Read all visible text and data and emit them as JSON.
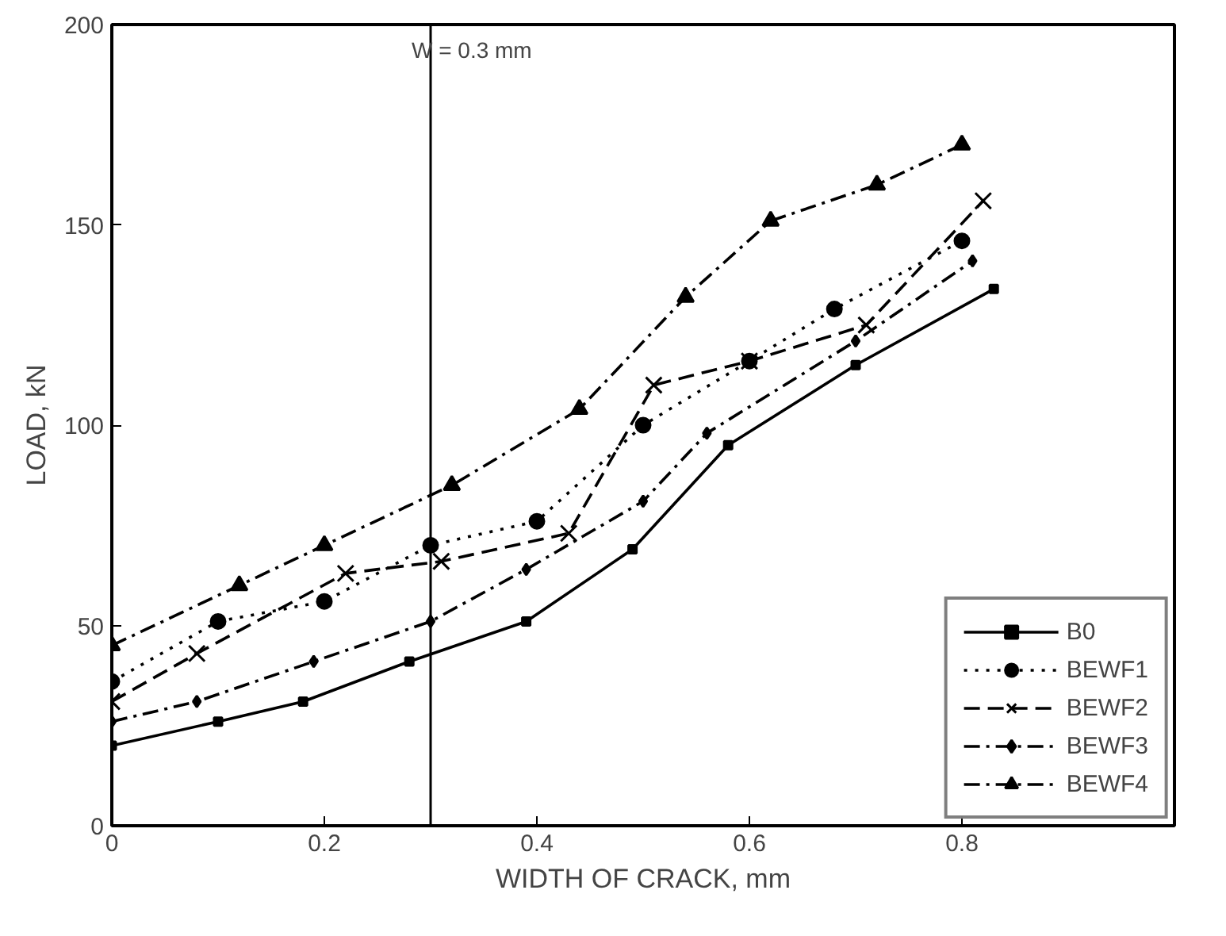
{
  "chart_data": {
    "type": "line",
    "xlabel": "WIDTH OF CRACK, mm",
    "ylabel": "LOAD, kN",
    "xlim": [
      0,
      1
    ],
    "ylim": [
      0,
      200
    ],
    "xticks": [
      0,
      0.2,
      0.4,
      0.6,
      0.8
    ],
    "yticks": [
      0,
      50,
      100,
      150,
      200
    ],
    "grid": false,
    "legend": "bottom right",
    "ref_lines": [
      {
        "axis": "x",
        "value": 0.3,
        "label": "W = 0.3 mm",
        "color": "#000000",
        "line_style": "solid"
      }
    ],
    "series": [
      {
        "name": "B0",
        "color": "#000000",
        "marker": "square",
        "line_style": "solid",
        "x": [
          0,
          0.1,
          0.18,
          0.28,
          0.39,
          0.49,
          0.58,
          0.7,
          0.83
        ],
        "values": [
          20,
          26,
          31,
          41,
          51,
          69,
          95,
          115,
          134
        ]
      },
      {
        "name": "BEWF1",
        "color": "#000000",
        "marker": "circle",
        "line_style": "dotted",
        "x": [
          0,
          0.1,
          0.2,
          0.3,
          0.4,
          0.5,
          0.6,
          0.68,
          0.8
        ],
        "values": [
          36,
          51,
          56,
          70,
          76,
          100,
          116,
          129,
          146
        ]
      },
      {
        "name": "BEWF2",
        "color": "#000000",
        "marker": "cross",
        "line_style": "dashed",
        "x": [
          0,
          0.08,
          0.22,
          0.31,
          0.43,
          0.51,
          0.6,
          0.71,
          0.82
        ],
        "values": [
          31,
          43,
          63,
          66,
          73,
          110,
          116,
          125,
          156
        ]
      },
      {
        "name": "BEWF3",
        "color": "#000000",
        "marker": "diamond",
        "line_style": "dashdot",
        "x": [
          0,
          0.08,
          0.19,
          0.3,
          0.39,
          0.5,
          0.56,
          0.7,
          0.81
        ],
        "values": [
          26,
          31,
          41,
          51,
          64,
          81,
          98,
          121,
          141
        ]
      },
      {
        "name": "BEWF4",
        "color": "#000000",
        "marker": "triangle",
        "line_style": "dashdot",
        "x": [
          0,
          0.12,
          0.2,
          0.32,
          0.44,
          0.54,
          0.62,
          0.72,
          0.8
        ],
        "values": [
          45,
          60,
          70,
          85,
          104,
          132,
          151,
          160,
          170
        ]
      }
    ]
  }
}
